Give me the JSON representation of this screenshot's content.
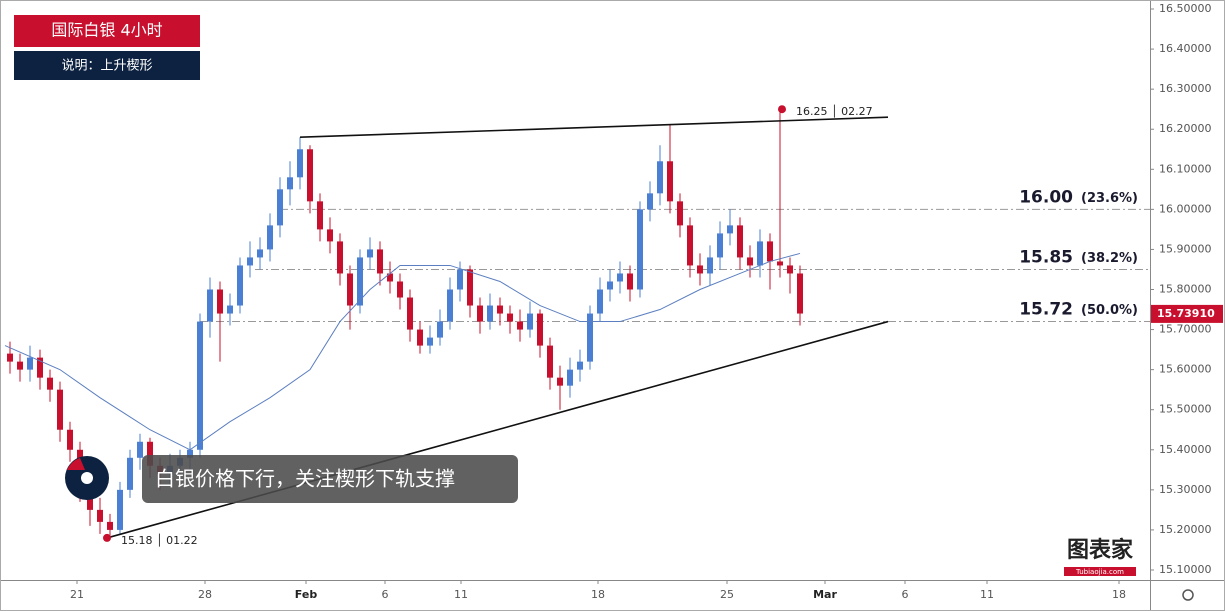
{
  "chart_data": {
    "type": "candlestick",
    "title": "国际白银 4小时",
    "subtitle": "说明：上升楔形",
    "annotation": "白银价格下行，关注楔形下轨支撑",
    "logo": {
      "name": "图表家",
      "site": "Tubiaojia.com"
    },
    "up_color": "#4a7fd4",
    "down_color": "#c8102e",
    "ma_color": "#5b7fc0",
    "x": [
      1,
      2,
      3,
      4,
      5,
      6,
      7,
      8,
      9,
      10,
      11,
      12,
      13,
      14,
      15,
      16,
      17,
      18,
      19,
      20,
      21,
      22,
      23,
      24,
      25,
      26,
      27,
      28,
      29,
      30,
      31,
      32,
      33,
      34,
      35,
      36,
      37,
      38,
      39,
      40,
      41,
      42,
      43,
      44,
      45,
      46,
      47,
      48,
      49,
      50,
      51,
      52,
      53,
      54,
      55,
      56,
      57,
      58,
      59,
      60,
      61,
      62,
      63,
      64,
      65,
      66,
      67,
      68,
      69,
      70,
      71,
      72,
      73,
      74,
      75,
      76,
      77,
      78,
      79,
      80
    ],
    "open": [
      15.64,
      15.62,
      15.6,
      15.63,
      15.58,
      15.55,
      15.45,
      15.4,
      15.3,
      15.25,
      15.22,
      15.2,
      15.3,
      15.38,
      15.42,
      15.36,
      15.34,
      15.36,
      15.38,
      15.4,
      15.72,
      15.8,
      15.74,
      15.76,
      15.86,
      15.88,
      15.9,
      15.96,
      16.05,
      16.08,
      16.15,
      16.02,
      15.95,
      15.92,
      15.84,
      15.76,
      15.88,
      15.9,
      15.84,
      15.82,
      15.78,
      15.7,
      15.66,
      15.68,
      15.72,
      15.8,
      15.85,
      15.76,
      15.72,
      15.76,
      15.74,
      15.72,
      15.7,
      15.74,
      15.66,
      15.58,
      15.56,
      15.6,
      15.62,
      15.74,
      15.8,
      15.82,
      15.84,
      15.8,
      16.0,
      16.04,
      16.12,
      16.02,
      15.96,
      15.86,
      15.84,
      15.88,
      15.94,
      15.96,
      15.88,
      15.86,
      15.92,
      15.87,
      15.86,
      15.84
    ],
    "high": [
      15.67,
      15.64,
      15.66,
      15.65,
      15.6,
      15.57,
      15.47,
      15.42,
      15.32,
      15.28,
      15.24,
      15.32,
      15.4,
      15.44,
      15.43,
      15.38,
      15.39,
      15.4,
      15.42,
      15.74,
      15.83,
      15.82,
      15.79,
      15.88,
      15.92,
      15.93,
      15.99,
      16.08,
      16.12,
      16.18,
      16.16,
      16.04,
      15.98,
      15.94,
      15.86,
      15.9,
      15.93,
      15.92,
      15.87,
      15.84,
      15.8,
      15.72,
      15.71,
      15.75,
      15.83,
      15.87,
      15.86,
      15.78,
      15.79,
      15.78,
      15.76,
      15.75,
      15.77,
      15.75,
      15.68,
      15.61,
      15.63,
      15.65,
      15.76,
      15.83,
      15.85,
      15.87,
      15.86,
      16.02,
      16.07,
      16.16,
      16.21,
      16.04,
      15.98,
      15.89,
      15.91,
      15.97,
      16.0,
      15.98,
      15.91,
      15.95,
      15.94,
      16.25,
      15.88,
      15.86
    ],
    "low": [
      15.59,
      15.57,
      15.57,
      15.55,
      15.52,
      15.42,
      15.37,
      15.27,
      15.21,
      15.19,
      15.18,
      15.19,
      15.28,
      15.35,
      15.33,
      15.3,
      15.31,
      15.33,
      15.35,
      15.38,
      15.68,
      15.62,
      15.71,
      15.74,
      15.83,
      15.85,
      15.87,
      15.93,
      16.01,
      16.05,
      15.99,
      15.92,
      15.89,
      15.81,
      15.7,
      15.74,
      15.85,
      15.81,
      15.79,
      15.75,
      15.67,
      15.64,
      15.64,
      15.66,
      15.7,
      15.77,
      15.73,
      15.69,
      15.7,
      15.71,
      15.69,
      15.67,
      15.68,
      15.63,
      15.55,
      15.5,
      15.53,
      15.57,
      15.6,
      15.72,
      15.77,
      15.79,
      15.77,
      15.78,
      15.97,
      16.01,
      15.99,
      15.93,
      15.83,
      15.81,
      15.81,
      15.85,
      15.91,
      15.85,
      15.83,
      15.83,
      15.8,
      15.83,
      15.79,
      15.71
    ],
    "close": [
      15.62,
      15.6,
      15.63,
      15.58,
      15.55,
      15.45,
      15.4,
      15.3,
      15.25,
      15.22,
      15.2,
      15.3,
      15.38,
      15.42,
      15.36,
      15.34,
      15.36,
      15.38,
      15.4,
      15.72,
      15.8,
      15.74,
      15.76,
      15.86,
      15.88,
      15.9,
      15.96,
      16.05,
      16.08,
      16.15,
      16.02,
      15.95,
      15.92,
      15.84,
      15.76,
      15.88,
      15.9,
      15.84,
      15.82,
      15.78,
      15.7,
      15.66,
      15.68,
      15.72,
      15.8,
      15.85,
      15.76,
      15.72,
      15.76,
      15.74,
      15.72,
      15.7,
      15.74,
      15.66,
      15.58,
      15.56,
      15.6,
      15.62,
      15.74,
      15.8,
      15.82,
      15.84,
      15.8,
      16.0,
      16.04,
      16.12,
      16.02,
      15.96,
      15.86,
      15.84,
      15.88,
      15.94,
      15.96,
      15.88,
      15.86,
      15.92,
      15.87,
      15.86,
      15.84,
      15.74
    ],
    "ma": {
      "x": [
        0.5,
        6,
        10,
        15,
        19,
        23,
        27,
        31,
        34,
        37,
        40,
        45,
        50,
        54,
        58,
        62,
        66,
        70,
        74,
        77,
        80
      ],
      "values": [
        15.66,
        15.6,
        15.53,
        15.45,
        15.4,
        15.47,
        15.53,
        15.6,
        15.72,
        15.8,
        15.86,
        15.86,
        15.82,
        15.76,
        15.72,
        15.72,
        15.75,
        15.8,
        15.84,
        15.87,
        15.89
      ]
    },
    "trendlines": [
      {
        "x": [
          30,
          88.8
        ],
        "y": [
          16.18,
          16.23
        ]
      },
      {
        "x": [
          10.7,
          88.8
        ],
        "y": [
          15.18,
          15.72
        ]
      }
    ],
    "levels": [
      {
        "value": 16,
        "label": "16.00",
        "pct": "(23.6%)",
        "x_start": 28
      },
      {
        "value": 15.85,
        "label": "15.85",
        "pct": "(38.2%)",
        "x_start": 25.5
      },
      {
        "value": 15.72,
        "label": "15.72",
        "pct": "(50.0%)",
        "x_start": 20
      }
    ],
    "points": [
      {
        "x": 10.7,
        "y": 15.18,
        "label": "15.18 │ 01.22"
      },
      {
        "x": 78.2,
        "y": 16.25,
        "label": "16.25 │ 02.27"
      }
    ],
    "last_price": {
      "value": 15.7391,
      "label": "15.73910"
    },
    "xlim": [
      0,
      115
    ],
    "ylim": [
      15.075,
      16.5225
    ],
    "xticks": [
      {
        "value": 7.7,
        "label": "21"
      },
      {
        "value": 20.5,
        "label": "28"
      },
      {
        "value": 30.6,
        "label": "Feb"
      },
      {
        "value": 38.5,
        "label": "6"
      },
      {
        "value": 46.1,
        "label": "11"
      },
      {
        "value": 59.8,
        "label": "18"
      },
      {
        "value": 72.7,
        "label": "25"
      },
      {
        "value": 82.5,
        "label": "Mar"
      },
      {
        "value": 90.5,
        "label": "6"
      },
      {
        "value": 98.7,
        "label": "11"
      },
      {
        "value": 111.9,
        "label": "18"
      }
    ],
    "yticks": [
      {
        "value": 15.1,
        "label": "15.10000"
      },
      {
        "value": 15.2,
        "label": "15.20000"
      },
      {
        "value": 15.3,
        "label": "15.30000"
      },
      {
        "value": 15.4,
        "label": "15.40000"
      },
      {
        "value": 15.5,
        "label": "15.50000"
      },
      {
        "value": 15.6,
        "label": "15.60000"
      },
      {
        "value": 15.7,
        "label": "15.70000"
      },
      {
        "value": 15.8,
        "label": "15.80000"
      },
      {
        "value": 15.9,
        "label": "15.90000"
      },
      {
        "value": 16,
        "label": "16.00000"
      },
      {
        "value": 16.1,
        "label": "16.10000"
      },
      {
        "value": 16.2,
        "label": "16.20000"
      },
      {
        "value": 16.3,
        "label": "16.30000"
      },
      {
        "value": 16.4,
        "label": "16.40000"
      },
      {
        "value": 16.5,
        "label": "16.50000"
      }
    ]
  }
}
